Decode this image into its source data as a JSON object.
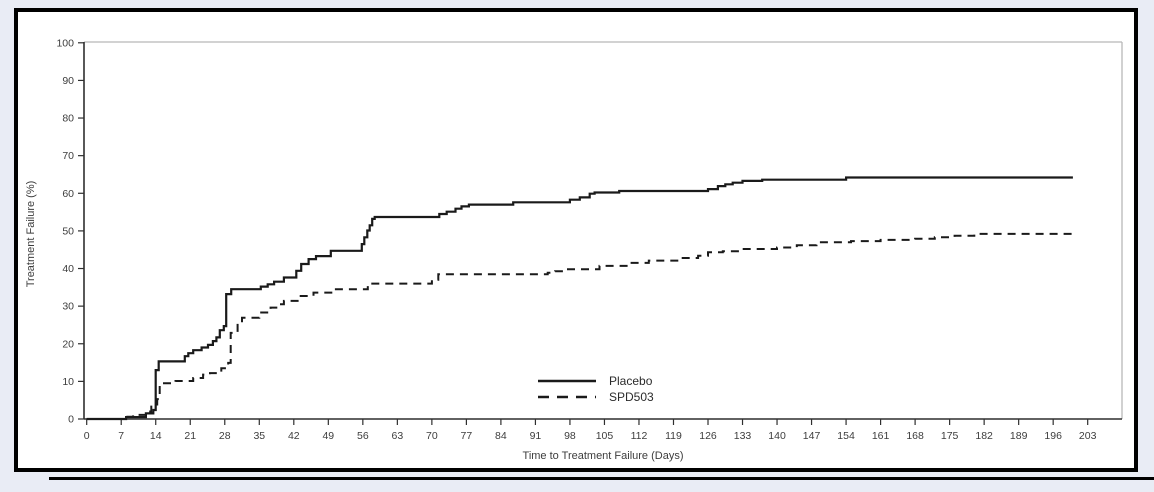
{
  "figure": {
    "page_background": "#e9ecf5",
    "panel_background": "#ffffff",
    "panel_border_color": "#000000",
    "frame_gray": "#b8b8b8",
    "axis_color": "#2f2f2f",
    "line_color": "#1a1a1a",
    "text_color": "#3d3d3d"
  },
  "chart_data": {
    "type": "line",
    "subtype": "step-kaplan-meier-failure",
    "title": "",
    "xlabel": "Time to Treatment Failure (Days)",
    "ylabel": "Treatment Failure (%)",
    "xlim": [
      0,
      203
    ],
    "ylim": [
      0,
      100
    ],
    "x_ticks": [
      0,
      7,
      14,
      21,
      28,
      35,
      42,
      49,
      56,
      63,
      70,
      77,
      84,
      91,
      98,
      105,
      112,
      119,
      126,
      133,
      140,
      147,
      154,
      161,
      168,
      175,
      182,
      189,
      196,
      203
    ],
    "y_ticks": [
      0,
      10,
      20,
      30,
      40,
      50,
      60,
      70,
      80,
      90,
      100
    ],
    "grid": false,
    "legend_position": "inside-bottom-center",
    "series": [
      {
        "name": "Placebo",
        "line_style": "solid",
        "color": "#1a1a1a",
        "points": [
          [
            0,
            0
          ],
          [
            8,
            0.5
          ],
          [
            12,
            1.5
          ],
          [
            13.5,
            2.4
          ],
          [
            14,
            13
          ],
          [
            14.6,
            15.3
          ],
          [
            19.9,
            16.7
          ],
          [
            20.6,
            17.5
          ],
          [
            21.6,
            18.3
          ],
          [
            23.3,
            19
          ],
          [
            24.6,
            19.7
          ],
          [
            25.6,
            20.7
          ],
          [
            26.3,
            21.7
          ],
          [
            27,
            23.6
          ],
          [
            27.8,
            24.7
          ],
          [
            28.3,
            33.2
          ],
          [
            29.3,
            34.5
          ],
          [
            35.3,
            35.2
          ],
          [
            36.7,
            35.8
          ],
          [
            38,
            36.5
          ],
          [
            40,
            37.6
          ],
          [
            42.5,
            39.4
          ],
          [
            43.5,
            41.2
          ],
          [
            45,
            42.5
          ],
          [
            46.5,
            43.3
          ],
          [
            49.5,
            44.7
          ],
          [
            55.8,
            46.5
          ],
          [
            56.3,
            48.3
          ],
          [
            56.9,
            50.1
          ],
          [
            57.4,
            51.5
          ],
          [
            57.9,
            53.2
          ],
          [
            58.4,
            53.7
          ],
          [
            71.5,
            54.5
          ],
          [
            73,
            55.1
          ],
          [
            74.8,
            55.9
          ],
          [
            76,
            56.5
          ],
          [
            77.5,
            57
          ],
          [
            86.5,
            57.6
          ],
          [
            98,
            58.3
          ],
          [
            100,
            58.9
          ],
          [
            102,
            59.9
          ],
          [
            103,
            60.2
          ],
          [
            108,
            60.6
          ],
          [
            126,
            61.1
          ],
          [
            128,
            61.9
          ],
          [
            129.5,
            62.4
          ],
          [
            131,
            62.8
          ],
          [
            133,
            63.3
          ],
          [
            137,
            63.6
          ],
          [
            154,
            64.2
          ],
          [
            200,
            64.2
          ]
        ]
      },
      {
        "name": "SPD503",
        "line_style": "dashed",
        "color": "#1a1a1a",
        "points": [
          [
            0,
            0
          ],
          [
            7.7,
            0.6
          ],
          [
            9.4,
            1.1
          ],
          [
            12,
            2
          ],
          [
            13.1,
            3.3
          ],
          [
            14.3,
            5.3
          ],
          [
            14.8,
            9.5
          ],
          [
            18,
            10.1
          ],
          [
            21.6,
            10.9
          ],
          [
            23.6,
            11.8
          ],
          [
            25,
            12.2
          ],
          [
            27.3,
            13.5
          ],
          [
            28.7,
            14.9
          ],
          [
            29.2,
            22.9
          ],
          [
            30.6,
            25.6
          ],
          [
            31.5,
            26.9
          ],
          [
            35,
            28.3
          ],
          [
            37.3,
            29.6
          ],
          [
            39,
            30.5
          ],
          [
            40,
            31.4
          ],
          [
            43.2,
            32.7
          ],
          [
            46,
            33.6
          ],
          [
            50,
            34.5
          ],
          [
            57,
            36
          ],
          [
            70,
            37
          ],
          [
            71.3,
            38.5
          ],
          [
            93.5,
            38.9
          ],
          [
            95,
            39.3
          ],
          [
            97,
            39.8
          ],
          [
            104,
            40.7
          ],
          [
            110,
            41.5
          ],
          [
            114,
            42.1
          ],
          [
            120,
            42.8
          ],
          [
            124,
            43.4
          ],
          [
            126,
            44.3
          ],
          [
            129,
            44.6
          ],
          [
            133,
            45.2
          ],
          [
            140,
            45.6
          ],
          [
            144,
            46.2
          ],
          [
            148,
            47
          ],
          [
            155,
            47.3
          ],
          [
            161,
            47.6
          ],
          [
            168,
            47.9
          ],
          [
            172,
            48.3
          ],
          [
            176,
            48.7
          ],
          [
            180,
            49.2
          ],
          [
            200,
            49.2
          ]
        ]
      }
    ]
  }
}
